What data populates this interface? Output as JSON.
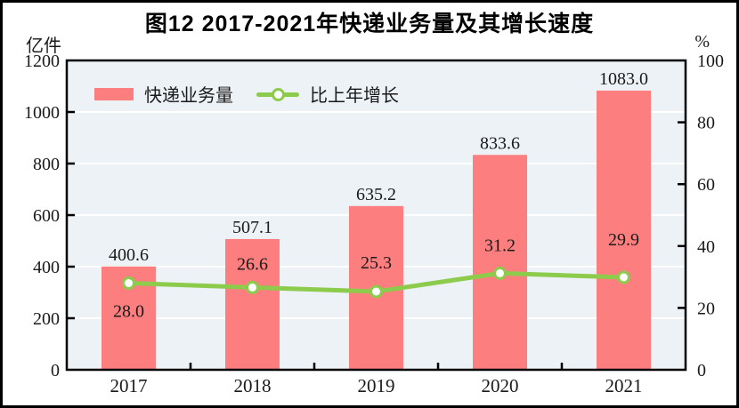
{
  "figure": {
    "title": "图12  2017-2021年快递业务量及其增长速度",
    "left_axis_unit": "亿件",
    "right_axis_unit": "%"
  },
  "legend": [
    {
      "label": "快递业务量",
      "type": "bar",
      "color": "#FC7E7E"
    },
    {
      "label": "比上年增长",
      "type": "line",
      "color": "#8CCB4B"
    }
  ],
  "chart_data": {
    "type": "bar+line",
    "title": "图12  2017-2021年快递业务量及其增长速度",
    "categories": [
      "2017",
      "2018",
      "2019",
      "2020",
      "2021"
    ],
    "series": [
      {
        "name": "快递业务量",
        "type": "bar",
        "axis": "left",
        "unit": "亿件",
        "values": [
          400.6,
          507.1,
          635.2,
          833.6,
          1083.0
        ],
        "color": "#FC7E7E"
      },
      {
        "name": "比上年增长",
        "type": "line",
        "axis": "right",
        "unit": "%",
        "values": [
          28.0,
          26.6,
          25.3,
          31.2,
          29.9
        ],
        "color": "#8CCB4B",
        "marker": "circle-white-fill-green-ring"
      }
    ],
    "left_axis": {
      "label": "亿件",
      "min": 0,
      "max": 1200,
      "step": 200,
      "ticks": [
        0,
        200,
        400,
        600,
        800,
        1000,
        1200
      ]
    },
    "right_axis": {
      "label": "%",
      "min": 0,
      "max": 100,
      "step": 20,
      "ticks": [
        0,
        20,
        40,
        60,
        80,
        100
      ]
    },
    "grid": "horizontal",
    "grid_color": "#FFFFFF",
    "plot_bg": "#EDF2F7",
    "axis_color": "#000000",
    "text_color": "#1a1a1a",
    "line_label_offsets": [
      31,
      -27,
      -33,
      -32,
      -43
    ]
  }
}
